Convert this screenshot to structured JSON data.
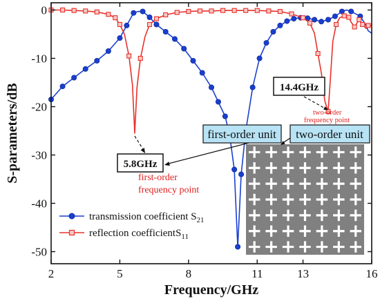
{
  "chart_data": {
    "type": "line",
    "xlabel": "Frequency/GHz",
    "ylabel": "S-parameters/dB",
    "xlim": [
      2,
      16
    ],
    "ylim": [
      -52.5,
      1.5
    ],
    "xticks": [
      "2",
      "5",
      "8",
      "11",
      "13",
      "16"
    ],
    "xtick_values": [
      2,
      5,
      8,
      11,
      13,
      16
    ],
    "yticks": [
      "0",
      "-10",
      "-20",
      "-30",
      "-40",
      "-50"
    ],
    "ytick_values": [
      0,
      -10,
      -20,
      -30,
      -40,
      -50
    ],
    "grid": false,
    "legend_position": "bottom-left",
    "series": [
      {
        "name_main": "transmission coefficient S",
        "name_sub": "21",
        "color": "#1a3fcf",
        "marker": "circle",
        "points": [
          [
            2,
            -18.5
          ],
          [
            2.5,
            -15.8
          ],
          [
            3,
            -14
          ],
          [
            3.5,
            -12.2
          ],
          [
            4,
            -10.5
          ],
          [
            4.5,
            -8.5
          ],
          [
            5,
            -5.8
          ],
          [
            5.3,
            -3.2
          ],
          [
            5.6,
            -0.6
          ],
          [
            5.8,
            -0.3
          ],
          [
            6.0,
            -0.3
          ],
          [
            6.3,
            -1.5
          ],
          [
            6.6,
            -3
          ],
          [
            7,
            -4.5
          ],
          [
            7.4,
            -6
          ],
          [
            7.8,
            -8
          ],
          [
            8.2,
            -10.5
          ],
          [
            8.6,
            -13
          ],
          [
            9,
            -16
          ],
          [
            9.3,
            -19
          ],
          [
            9.6,
            -22
          ],
          [
            9.8,
            -26
          ],
          [
            10.0,
            -33
          ],
          [
            10.15,
            -49
          ],
          [
            10.3,
            -34
          ],
          [
            10.5,
            -25
          ],
          [
            10.8,
            -16
          ],
          [
            11.1,
            -10
          ],
          [
            11.4,
            -6.8
          ],
          [
            11.7,
            -4.5
          ],
          [
            12,
            -3.2
          ],
          [
            12.3,
            -2.3
          ],
          [
            12.6,
            -1.8
          ],
          [
            12.9,
            -1.6
          ],
          [
            13.2,
            -1.7
          ],
          [
            13.5,
            -2
          ],
          [
            13.8,
            -2.4
          ],
          [
            14.1,
            -2
          ],
          [
            14.4,
            -1.3
          ],
          [
            14.7,
            -0.3
          ],
          [
            14.9,
            0
          ],
          [
            15.1,
            -0.3
          ],
          [
            15.3,
            -0.8
          ],
          [
            15.5,
            -1.3
          ],
          [
            15.7,
            -2.8
          ],
          [
            15.85,
            -4.3
          ],
          [
            16,
            -4.8
          ]
        ],
        "marker_points": [
          [
            2,
            -18.5
          ],
          [
            2.5,
            -15.8
          ],
          [
            3,
            -14
          ],
          [
            3.5,
            -12.2
          ],
          [
            4,
            -10.5
          ],
          [
            4.5,
            -8.5
          ],
          [
            5,
            -5.8
          ],
          [
            5.3,
            -3.2
          ],
          [
            5.6,
            -0.6
          ],
          [
            6.0,
            -0.3
          ],
          [
            6.3,
            -1.5
          ],
          [
            6.6,
            -3
          ],
          [
            7,
            -4.5
          ],
          [
            7.4,
            -6
          ],
          [
            7.8,
            -8
          ],
          [
            8.2,
            -10.5
          ],
          [
            8.6,
            -13
          ],
          [
            9,
            -16
          ],
          [
            9.3,
            -19
          ],
          [
            9.6,
            -22
          ],
          [
            9.8,
            -26
          ],
          [
            10.0,
            -33
          ],
          [
            10.15,
            -49
          ],
          [
            10.3,
            -34
          ],
          [
            10.5,
            -25
          ],
          [
            10.8,
            -16
          ],
          [
            11.1,
            -10
          ],
          [
            11.4,
            -6.8
          ],
          [
            11.7,
            -4.5
          ],
          [
            12,
            -3.2
          ],
          [
            12.3,
            -2.3
          ],
          [
            12.6,
            -1.8
          ],
          [
            12.9,
            -1.6
          ],
          [
            13.2,
            -1.7
          ],
          [
            13.5,
            -2
          ],
          [
            13.8,
            -2.4
          ],
          [
            14.1,
            -2
          ],
          [
            14.4,
            -1.3
          ],
          [
            14.7,
            -0.3
          ],
          [
            15.1,
            -0.3
          ],
          [
            15.5,
            -1.3
          ]
        ]
      },
      {
        "name_main": "reflection coefficientS",
        "name_sub": "11",
        "color": "#e8302a",
        "marker": "square",
        "points": [
          [
            2,
            0
          ],
          [
            2.5,
            0
          ],
          [
            3,
            -0.1
          ],
          [
            3.5,
            -0.2
          ],
          [
            4,
            -0.4
          ],
          [
            4.5,
            -0.9
          ],
          [
            4.8,
            -1.6
          ],
          [
            5.0,
            -3
          ],
          [
            5.2,
            -5
          ],
          [
            5.4,
            -9.5
          ],
          [
            5.55,
            -15.5
          ],
          [
            5.65,
            -25.5
          ],
          [
            5.75,
            -16
          ],
          [
            5.9,
            -10
          ],
          [
            6.1,
            -5.5
          ],
          [
            6.3,
            -3
          ],
          [
            6.6,
            -1.8
          ],
          [
            7,
            -1
          ],
          [
            7.5,
            -0.5
          ],
          [
            8,
            -0.3
          ],
          [
            8.5,
            -0.2
          ],
          [
            9,
            -0.2
          ],
          [
            9.5,
            -0.1
          ],
          [
            10,
            -0.1
          ],
          [
            10.5,
            -0.1
          ],
          [
            11,
            -0.1
          ],
          [
            11.5,
            -0.2
          ],
          [
            12,
            -0.3
          ],
          [
            12.5,
            -0.8
          ],
          [
            13,
            -1.6
          ],
          [
            13.3,
            -2.7
          ],
          [
            13.5,
            -4.8
          ],
          [
            13.65,
            -9
          ],
          [
            13.8,
            -13
          ],
          [
            13.95,
            -18.8
          ],
          [
            14.1,
            -21
          ],
          [
            14.2,
            -14
          ],
          [
            14.3,
            -6.5
          ],
          [
            14.45,
            -3
          ],
          [
            14.6,
            -1.6
          ],
          [
            14.8,
            -1.2
          ],
          [
            15.0,
            -1.5
          ],
          [
            15.1,
            -2.5
          ],
          [
            15.25,
            -3.5
          ],
          [
            15.45,
            -2
          ],
          [
            15.6,
            -3
          ],
          [
            15.75,
            -3.8
          ],
          [
            15.85,
            -3.2
          ],
          [
            16,
            -3.2
          ]
        ],
        "marker_points": [
          [
            2,
            0
          ],
          [
            2.5,
            0
          ],
          [
            3,
            -0.1
          ],
          [
            3.5,
            -0.2
          ],
          [
            4,
            -0.4
          ],
          [
            4.5,
            -0.9
          ],
          [
            4.8,
            -1.6
          ],
          [
            5.0,
            -3
          ],
          [
            5.4,
            -9.5
          ],
          [
            5.9,
            -10
          ],
          [
            6.3,
            -3
          ],
          [
            6.6,
            -1.8
          ],
          [
            7,
            -1
          ],
          [
            7.5,
            -0.5
          ],
          [
            8,
            -0.3
          ],
          [
            8.5,
            -0.2
          ],
          [
            9,
            -0.2
          ],
          [
            9.5,
            -0.1
          ],
          [
            10,
            -0.1
          ],
          [
            10.5,
            -0.1
          ],
          [
            11,
            -0.1
          ],
          [
            11.5,
            -0.2
          ],
          [
            12,
            -0.3
          ],
          [
            12.5,
            -0.8
          ],
          [
            13,
            -1.6
          ],
          [
            13.3,
            -2.7
          ],
          [
            13.65,
            -9
          ],
          [
            14.1,
            -21
          ],
          [
            14.45,
            -3
          ],
          [
            14.8,
            -1.2
          ],
          [
            15.0,
            -1.5
          ],
          [
            15.25,
            -3.5
          ],
          [
            15.45,
            -2
          ],
          [
            15.6,
            -3
          ],
          [
            15.85,
            -3.2
          ]
        ]
      }
    ],
    "annotations": {
      "label_5_8": "5.8GHz",
      "first_order_line1": "first-order",
      "first_order_line2": "frequency point",
      "label_14_4": "14.4GHz",
      "two_order_line1": "two-order",
      "two_order_line2": "frequency point",
      "first_order_unit": "first-order unit",
      "two_order_unit": "two-order unit"
    },
    "colors": {
      "inset_background": "#808080",
      "inset_cross": "#ffffff",
      "unit_box_fill": "#b7e3f5",
      "annotation_red": "#e02020"
    }
  }
}
